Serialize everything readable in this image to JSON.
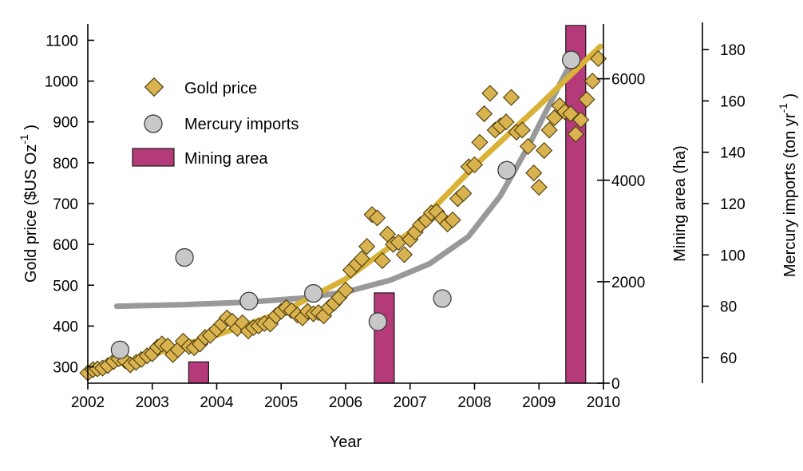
{
  "chart_data": {
    "type": "scatter",
    "xlabel": "Year",
    "x_ticks": [
      "2002",
      "2003",
      "2004",
      "2005",
      "2006",
      "2007",
      "2008",
      "2009",
      "2010"
    ],
    "xlim": [
      2002,
      2010
    ],
    "colors": {
      "gold": "#d9b34f",
      "gold_edge": "#4a3a0a",
      "gold_fit": "#d9b238",
      "mercury": "#c8c8c8",
      "mercury_edge": "#333333",
      "mercury_fit": "#999999",
      "mining": "#b43a7a",
      "mining_edge": "#1a1a1a"
    },
    "axes": {
      "gold": {
        "label_main": "Gold price ($US Oz",
        "label_sup": "-1",
        "label_close": ")",
        "ylim": [
          260,
          1140
        ],
        "ticks": [
          "300",
          "400",
          "500",
          "600",
          "700",
          "800",
          "900",
          "1000",
          "1100"
        ]
      },
      "mining": {
        "label": "Mining area (ha)",
        "ylim": [
          0,
          7080
        ],
        "ticks": [
          "0",
          "2000",
          "4000",
          "6000"
        ]
      },
      "mercury": {
        "label_main": "Mercury imports (ton yr",
        "label_sup": "-1",
        "label_close": ")",
        "ylim": [
          50,
          190
        ],
        "ticks": [
          "60",
          "80",
          "100",
          "120",
          "140",
          "160",
          "180"
        ]
      }
    },
    "legend": {
      "placement": "top-left",
      "entries": [
        {
          "label": "Gold price",
          "marker": "diamond"
        },
        {
          "label": "Mercury imports",
          "marker": "circle"
        },
        {
          "label": "Mining area",
          "marker": "bar"
        }
      ]
    },
    "series": [
      {
        "name": "Gold price",
        "axis": "gold",
        "marker": "diamond",
        "x": [
          2002.0,
          2002.08,
          2002.15,
          2002.23,
          2002.31,
          2002.4,
          2002.48,
          2002.58,
          2002.66,
          2002.75,
          2002.83,
          2002.92,
          2003.0,
          2003.08,
          2003.15,
          2003.24,
          2003.32,
          2003.4,
          2003.48,
          2003.57,
          2003.65,
          2003.74,
          2003.82,
          2003.9,
          2004.0,
          2004.08,
          2004.16,
          2004.24,
          2004.32,
          2004.4,
          2004.49,
          2004.57,
          2004.65,
          2004.74,
          2004.83,
          2004.92,
          2005.0,
          2005.08,
          2005.16,
          2005.25,
          2005.33,
          2005.41,
          2005.5,
          2005.58,
          2005.66,
          2005.74,
          2005.82,
          2005.9,
          2006.0,
          2006.08,
          2006.17,
          2006.25,
          2006.33,
          2006.41,
          2006.49,
          2006.57,
          2006.65,
          2006.74,
          2006.82,
          2006.91,
          2007.0,
          2007.08,
          2007.16,
          2007.25,
          2007.33,
          2007.41,
          2007.5,
          2007.58,
          2007.66,
          2007.74,
          2007.83,
          2007.91,
          2008.0,
          2008.08,
          2008.15,
          2008.24,
          2008.32,
          2008.4,
          2008.49,
          2008.57,
          2008.65,
          2008.74,
          2008.83,
          2008.92,
          2009.0,
          2009.08,
          2009.16,
          2009.24,
          2009.32,
          2009.4,
          2009.49,
          2009.57,
          2009.65,
          2009.74,
          2009.83,
          2009.92
        ],
        "values": [
          285,
          293,
          295,
          297,
          303,
          313,
          320,
          315,
          305,
          311,
          318,
          327,
          332,
          348,
          356,
          351,
          330,
          342,
          363,
          350,
          347,
          356,
          372,
          377,
          392,
          405,
          420,
          412,
          394,
          408,
          388,
          396,
          400,
          406,
          405,
          425,
          436,
          445,
          438,
          427,
          420,
          436,
          430,
          433,
          425,
          445,
          456,
          470,
          488,
          537,
          552,
          565,
          595,
          673,
          665,
          560,
          625,
          600,
          605,
          575,
          612,
          630,
          648,
          660,
          677,
          680,
          663,
          650,
          660,
          712,
          725,
          790,
          795,
          850,
          920,
          970,
          880,
          890,
          900,
          960,
          875,
          880,
          840,
          775,
          740,
          830,
          880,
          910,
          940,
          925,
          920,
          870,
          905,
          955,
          1000,
          1055
        ]
      },
      {
        "name": "Mercury imports",
        "axis": "mercury",
        "marker": "circle",
        "x": [
          2002.5,
          2003.5,
          2004.5,
          2005.5,
          2006.5,
          2007.5,
          2008.5,
          2009.5
        ],
        "values": [
          63,
          99,
          82,
          85,
          74,
          83,
          133,
          176
        ]
      },
      {
        "name": "Mining area",
        "axis": "mining",
        "marker": "bar",
        "x": [
          2003.72,
          2006.6,
          2009.57
        ],
        "values": [
          420,
          1780,
          7050
        ]
      }
    ],
    "fits": [
      {
        "series": "Gold price",
        "points": [
          [
            2002.0,
            288
          ],
          [
            2003.0,
            330
          ],
          [
            2004.0,
            378
          ],
          [
            2005.0,
            433
          ],
          [
            2006.0,
            515
          ],
          [
            2007.0,
            630
          ],
          [
            2008.0,
            792
          ],
          [
            2009.0,
            940
          ],
          [
            2009.95,
            1085
          ]
        ]
      },
      {
        "series": "Mercury imports",
        "points": [
          [
            2002.45,
            80
          ],
          [
            2003.5,
            80.6
          ],
          [
            2004.5,
            81.6
          ],
          [
            2005.3,
            83.1
          ],
          [
            2006.0,
            85.5
          ],
          [
            2006.7,
            90.2
          ],
          [
            2007.3,
            96.5
          ],
          [
            2007.9,
            107
          ],
          [
            2008.4,
            123
          ],
          [
            2008.85,
            143
          ],
          [
            2009.15,
            158
          ],
          [
            2009.4,
            170.3
          ],
          [
            2009.53,
            176
          ]
        ]
      }
    ]
  }
}
